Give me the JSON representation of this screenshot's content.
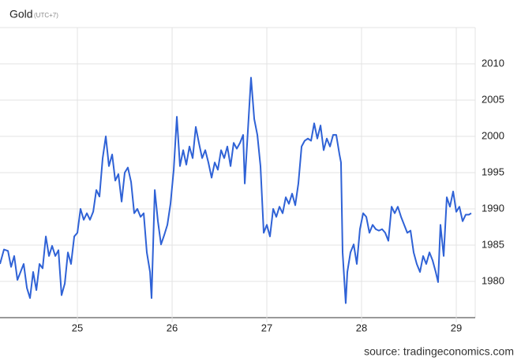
{
  "chart_data": {
    "type": "line",
    "title": "Gold",
    "subtitle": "(UTC+7)",
    "source": "source: tradingeconomics.com",
    "xlim": [
      24.183,
      29.2
    ],
    "xticks": [
      25,
      26,
      27,
      28,
      29
    ],
    "ylim": [
      1975,
      2015
    ],
    "yticks": [
      1980,
      1985,
      1990,
      1995,
      2000,
      2005,
      2010
    ],
    "grid": true,
    "x": [
      24.183,
      24.225,
      24.267,
      24.3,
      24.333,
      24.367,
      24.4,
      24.433,
      24.467,
      24.5,
      24.533,
      24.567,
      24.6,
      24.633,
      24.667,
      24.7,
      24.733,
      24.767,
      24.8,
      24.833,
      24.867,
      24.9,
      24.933,
      24.967,
      25,
      25.033,
      25.067,
      25.1,
      25.133,
      25.167,
      25.2,
      25.233,
      25.267,
      25.3,
      25.333,
      25.367,
      25.4,
      25.433,
      25.467,
      25.5,
      25.533,
      25.567,
      25.6,
      25.633,
      25.667,
      25.7,
      25.733,
      25.767,
      25.783,
      25.817,
      25.85,
      25.883,
      25.917,
      25.95,
      25.983,
      26.017,
      26.05,
      26.083,
      26.117,
      26.15,
      26.183,
      26.217,
      26.25,
      26.283,
      26.317,
      26.35,
      26.383,
      26.417,
      26.45,
      26.483,
      26.517,
      26.55,
      26.583,
      26.617,
      26.65,
      26.683,
      26.717,
      26.75,
      26.767,
      26.8,
      26.833,
      26.867,
      26.9,
      26.933,
      26.967,
      27,
      27.033,
      27.067,
      27.1,
      27.133,
      27.167,
      27.2,
      27.233,
      27.267,
      27.3,
      27.333,
      27.367,
      27.4,
      27.433,
      27.467,
      27.5,
      27.533,
      27.567,
      27.6,
      27.633,
      27.667,
      27.7,
      27.733,
      27.767,
      27.783,
      27.8,
      27.833,
      27.85,
      27.883,
      27.917,
      27.95,
      27.983,
      28.017,
      28.05,
      28.083,
      28.117,
      28.15,
      28.183,
      28.217,
      28.25,
      28.283,
      28.317,
      28.35,
      28.383,
      28.417,
      28.45,
      28.483,
      28.517,
      28.55,
      28.583,
      28.617,
      28.65,
      28.683,
      28.717,
      28.75,
      28.783,
      28.808,
      28.833,
      28.867,
      28.9,
      28.933,
      28.967,
      29,
      29.033,
      29.067,
      29.1,
      29.133,
      29.158
    ],
    "series": [
      {
        "color": "#2f62d6",
        "values": [
          1982.4,
          1984.4,
          1984.2,
          1982,
          1983.5,
          1980.2,
          1981.3,
          1982.4,
          1979.1,
          1977.7,
          1981.3,
          1978.8,
          1982.4,
          1981.8,
          1986.2,
          1983.5,
          1984.9,
          1983.5,
          1984.3,
          1978.1,
          1979.7,
          1984,
          1982.4,
          1986.2,
          1986.7,
          1990,
          1988.5,
          1989.4,
          1988.5,
          1989.6,
          1992.6,
          1991.7,
          1997,
          2000,
          1995.9,
          1997.5,
          1993.9,
          1994.8,
          1991,
          1995,
          1995.7,
          1993.7,
          1989.4,
          1990,
          1988.9,
          1989.4,
          1984,
          1981.3,
          1977.7,
          1992.6,
          1988.3,
          1985.1,
          1986.4,
          1987.8,
          1990.7,
          1995.4,
          2002.7,
          1995.9,
          1998.1,
          1996.1,
          1998.6,
          1997,
          2001.3,
          1999.1,
          1997,
          1998.1,
          1996.4,
          1994.3,
          1996.4,
          1995.4,
          1998.1,
          1997,
          1998.6,
          1995.9,
          1999.1,
          1998.3,
          1999.1,
          2000.2,
          1993.5,
          2000.8,
          2008.1,
          2002.4,
          2000.2,
          1995.9,
          1986.7,
          1987.8,
          1986.2,
          1990,
          1988.9,
          1990.3,
          1989.4,
          1991.6,
          1990.7,
          1992.1,
          1990.5,
          1993.5,
          1998.6,
          1999.4,
          1999.7,
          1999.4,
          2001.8,
          1999.7,
          2001.5,
          1998.1,
          1999.7,
          1998.6,
          2000.2,
          2000.2,
          1997.5,
          1996.4,
          1984,
          1977,
          1981.3,
          1984,
          1985.1,
          1982.4,
          1987.2,
          1989.4,
          1988.9,
          1986.7,
          1987.8,
          1987.2,
          1987,
          1987.2,
          1986.7,
          1985.6,
          1990.3,
          1989.4,
          1990.3,
          1988.9,
          1987.8,
          1986.7,
          1987,
          1984,
          1982.4,
          1981.3,
          1983.5,
          1982.4,
          1984,
          1982.9,
          1981.3,
          1979.9,
          1987.8,
          1983.5,
          1991.6,
          1990.3,
          1992.4,
          1989.6,
          1990.3,
          1988.3,
          1989.2,
          1989.2,
          1989.4
        ]
      }
    ]
  }
}
